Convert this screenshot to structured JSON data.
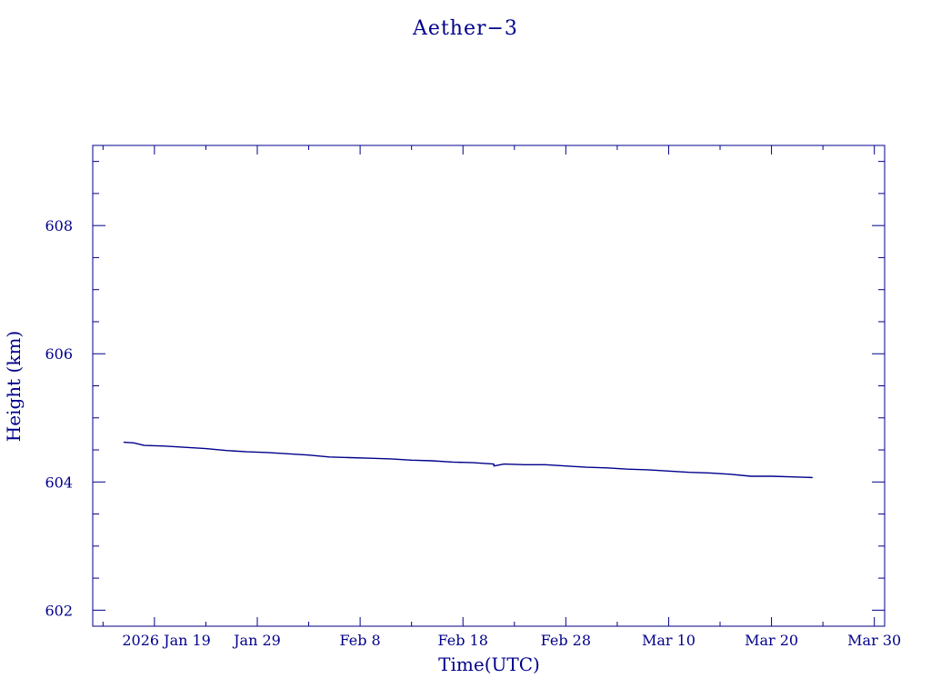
{
  "colors": {
    "foreground": "#00008b",
    "background": "#ffffff"
  },
  "chart_data": {
    "type": "line",
    "title": "Aether−3",
    "xlabel": "Time(UTC)",
    "ylabel": "Height (km)",
    "xlim": [
      "2026-01-13",
      "2026-03-31"
    ],
    "ylim": [
      601.75,
      609.25
    ],
    "x_ticks": [
      {
        "date": "2026-01-19",
        "label": "2026 Jan 19"
      },
      {
        "date": "2026-01-29",
        "label": "Jan 29"
      },
      {
        "date": "2026-02-08",
        "label": "Feb  8"
      },
      {
        "date": "2026-02-18",
        "label": "Feb 18"
      },
      {
        "date": "2026-02-28",
        "label": "Feb 28"
      },
      {
        "date": "2026-03-10",
        "label": "Mar 10"
      },
      {
        "date": "2026-03-20",
        "label": "Mar 20"
      },
      {
        "date": "2026-03-30",
        "label": "Mar 30"
      }
    ],
    "y_ticks": [
      602,
      604,
      606,
      608
    ],
    "grid": false,
    "series": [
      {
        "color": "#00008b",
        "points": [
          {
            "x": "2026-01-16",
            "y": 604.62
          },
          {
            "x": "2026-01-17",
            "y": 604.61
          },
          {
            "x": "2026-01-18",
            "y": 604.57
          },
          {
            "x": "2026-01-20",
            "y": 604.56
          },
          {
            "x": "2026-01-22",
            "y": 604.54
          },
          {
            "x": "2026-01-24",
            "y": 604.52
          },
          {
            "x": "2026-01-26",
            "y": 604.49
          },
          {
            "x": "2026-01-28",
            "y": 604.47
          },
          {
            "x": "2026-01-30",
            "y": 604.46
          },
          {
            "x": "2026-02-01",
            "y": 604.44
          },
          {
            "x": "2026-02-03",
            "y": 604.42
          },
          {
            "x": "2026-02-05",
            "y": 604.39
          },
          {
            "x": "2026-02-07",
            "y": 604.38
          },
          {
            "x": "2026-02-09",
            "y": 604.37
          },
          {
            "x": "2026-02-11",
            "y": 604.36
          },
          {
            "x": "2026-02-13",
            "y": 604.34
          },
          {
            "x": "2026-02-15",
            "y": 604.33
          },
          {
            "x": "2026-02-17",
            "y": 604.31
          },
          {
            "x": "2026-02-19",
            "y": 604.3
          },
          {
            "x": "2026-02-21",
            "y": 604.28
          },
          {
            "x": "2026-02-21",
            "y": 604.25
          },
          {
            "x": "2026-02-22",
            "y": 604.28
          },
          {
            "x": "2026-02-24",
            "y": 604.27
          },
          {
            "x": "2026-02-26",
            "y": 604.27
          },
          {
            "x": "2026-02-28",
            "y": 604.25
          },
          {
            "x": "2026-03-02",
            "y": 604.23
          },
          {
            "x": "2026-03-04",
            "y": 604.22
          },
          {
            "x": "2026-03-06",
            "y": 604.2
          },
          {
            "x": "2026-03-08",
            "y": 604.19
          },
          {
            "x": "2026-03-10",
            "y": 604.17
          },
          {
            "x": "2026-03-12",
            "y": 604.15
          },
          {
            "x": "2026-03-14",
            "y": 604.14
          },
          {
            "x": "2026-03-16",
            "y": 604.12
          },
          {
            "x": "2026-03-18",
            "y": 604.09
          },
          {
            "x": "2026-03-20",
            "y": 604.09
          },
          {
            "x": "2026-03-22",
            "y": 604.08
          },
          {
            "x": "2026-03-24",
            "y": 604.07
          }
        ]
      }
    ]
  }
}
